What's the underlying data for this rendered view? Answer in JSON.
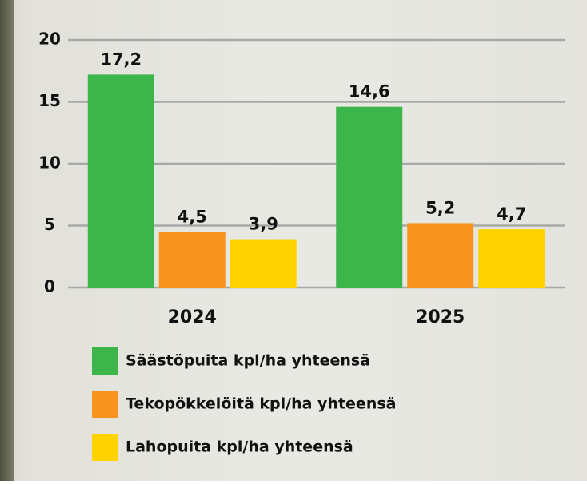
{
  "chart_data": {
    "type": "bar",
    "categories": [
      "2024",
      "2025"
    ],
    "series": [
      {
        "name": "Säästöpuita kpl/ha yhteensä",
        "color": "#3cb54a",
        "values": [
          17.2,
          14.6
        ],
        "value_labels": [
          "17,2",
          "14,6"
        ]
      },
      {
        "name": "Tekopökkelöitä kpl/ha yhteensä",
        "color": "#f7931e",
        "values": [
          4.5,
          5.2
        ],
        "value_labels": [
          "4,5",
          "5,2"
        ]
      },
      {
        "name": "Lahopuita kpl/ha yhteensä",
        "color": "#ffd200",
        "values": [
          3.9,
          4.7
        ],
        "value_labels": [
          "3,9",
          "4,7"
        ]
      }
    ],
    "ylim": [
      0,
      20
    ],
    "yticks": [
      0,
      5,
      10,
      15,
      20
    ],
    "grid": true
  }
}
